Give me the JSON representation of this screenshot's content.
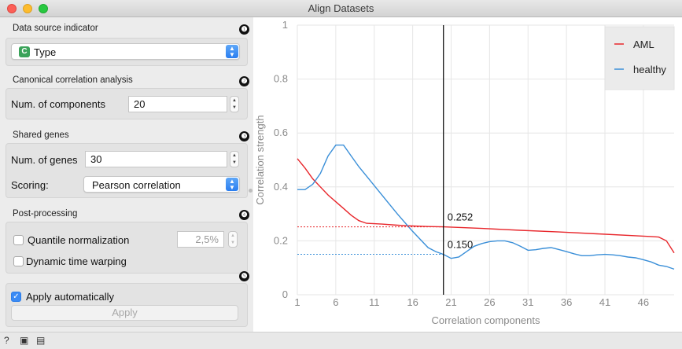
{
  "window": {
    "title": "Align Datasets"
  },
  "data_source": {
    "title": "Data source indicator",
    "badge": "❶",
    "selected": "Type",
    "type_icon": "C"
  },
  "cca": {
    "title": "Canonical correlation analysis",
    "badge": "❷",
    "components_label": "Num. of components",
    "components_value": "20"
  },
  "shared_genes": {
    "title": "Shared genes",
    "badge": "❸",
    "genes_label": "Num. of genes",
    "genes_value": "30",
    "scoring_label": "Scoring:",
    "scoring_value": "Pearson correlation"
  },
  "post_processing": {
    "title": "Post-processing",
    "badge": "❹",
    "quantile_label": "Quantile normalization",
    "quantile_checked": false,
    "quantile_value": "2,5%",
    "dtw_label": "Dynamic time warping",
    "dtw_checked": false
  },
  "apply": {
    "badge": "❺",
    "auto_label": "Apply automatically",
    "auto_checked": true,
    "button_label": "Apply"
  },
  "chart_data": {
    "type": "line",
    "xlabel": "Correlation components",
    "ylabel": "Correlation strength",
    "xlim": [
      1,
      50
    ],
    "ylim": [
      0,
      1
    ],
    "x_ticks": [
      "1",
      "6",
      "11",
      "16",
      "21",
      "26",
      "31",
      "36",
      "41",
      "46"
    ],
    "y_ticks": [
      "0",
      "0.2",
      "0.4",
      "0.6",
      "0.8",
      "1"
    ],
    "grid": true,
    "legend_position": "top-right",
    "series": [
      {
        "name": "AML",
        "color": "#e8262b",
        "x": [
          1,
          2,
          3,
          4,
          5,
          6,
          7,
          8,
          9,
          10,
          12,
          14,
          16,
          18,
          20,
          25,
          30,
          35,
          40,
          45,
          47,
          48,
          49,
          50
        ],
        "values": [
          0.505,
          0.47,
          0.43,
          0.4,
          0.37,
          0.345,
          0.32,
          0.295,
          0.275,
          0.265,
          0.262,
          0.258,
          0.255,
          0.253,
          0.252,
          0.246,
          0.239,
          0.233,
          0.226,
          0.219,
          0.216,
          0.214,
          0.2,
          0.155
        ]
      },
      {
        "name": "healthy",
        "color": "#3a8fd8",
        "x": [
          1,
          2,
          3,
          4,
          5,
          6,
          7,
          8,
          9,
          10,
          12,
          14,
          16,
          18,
          19,
          20,
          21,
          22,
          23,
          24,
          25,
          26,
          27,
          28,
          29,
          30,
          31,
          32,
          33,
          34,
          35,
          36,
          37,
          38,
          39,
          40,
          41,
          42,
          43,
          44,
          45,
          46,
          47,
          48,
          49,
          50
        ],
        "values": [
          0.39,
          0.39,
          0.41,
          0.45,
          0.515,
          0.555,
          0.555,
          0.515,
          0.475,
          0.44,
          0.37,
          0.3,
          0.235,
          0.175,
          0.16,
          0.15,
          0.135,
          0.14,
          0.16,
          0.18,
          0.19,
          0.197,
          0.2,
          0.2,
          0.193,
          0.18,
          0.165,
          0.167,
          0.172,
          0.175,
          0.168,
          0.16,
          0.152,
          0.145,
          0.145,
          0.148,
          0.15,
          0.148,
          0.145,
          0.14,
          0.137,
          0.13,
          0.122,
          0.11,
          0.105,
          0.095
        ]
      }
    ],
    "cutoff": {
      "x": 20,
      "AML_value": 0.252,
      "healthy_value": 0.15,
      "AML_label": "0.252",
      "healthy_label": "0.150"
    }
  },
  "statusbar": {
    "icons": [
      "help-icon",
      "save-icon",
      "report-icon"
    ]
  }
}
